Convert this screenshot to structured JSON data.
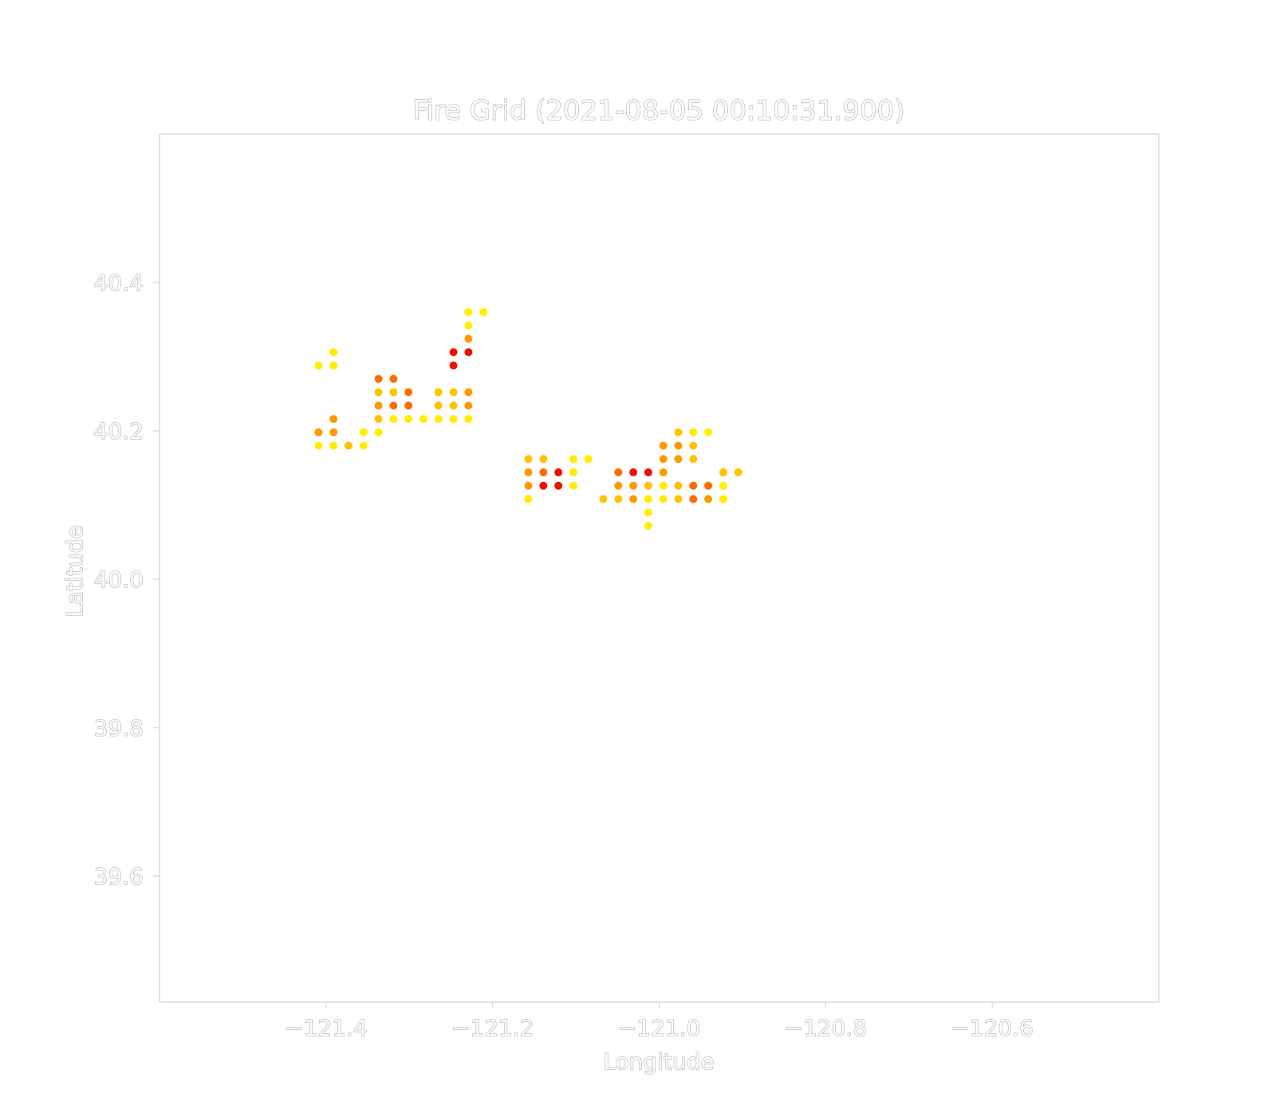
{
  "chart_data": {
    "type": "scatter",
    "title": "Fire Grid (2021-08-05 00:10:31.900)",
    "xlabel": "Longitude",
    "ylabel": "Latitude",
    "xlim": [
      -121.6,
      -120.4
    ],
    "ylim": [
      39.43,
      40.6
    ],
    "xticks": [
      -121.4,
      -121.2,
      -121.0,
      -120.8,
      -120.6
    ],
    "xtick_labels": [
      "−121.4",
      "−121.2",
      "−121.0",
      "−120.8",
      "−120.6"
    ],
    "yticks": [
      39.6,
      39.8,
      40.0,
      40.2,
      40.4
    ],
    "ytick_labels": [
      "39.6",
      "39.8",
      "40.0",
      "40.2",
      "40.4"
    ],
    "grid": false,
    "legend": "none",
    "color_scale": [
      "#ffee00",
      "#ffc200",
      "#ff9900",
      "#ff6a00",
      "#ee1100"
    ],
    "points": [
      [
        -121.409,
        40.288,
        0
      ],
      [
        -121.391,
        40.306,
        0
      ],
      [
        -121.391,
        40.288,
        0
      ],
      [
        -121.409,
        40.198,
        2
      ],
      [
        -121.391,
        40.216,
        2
      ],
      [
        -121.391,
        40.198,
        2
      ],
      [
        -121.409,
        40.18,
        0
      ],
      [
        -121.391,
        40.18,
        0
      ],
      [
        -121.373,
        40.18,
        1
      ],
      [
        -121.355,
        40.198,
        0
      ],
      [
        -121.355,
        40.18,
        0
      ],
      [
        -121.337,
        40.27,
        3
      ],
      [
        -121.337,
        40.252,
        1
      ],
      [
        -121.337,
        40.234,
        2
      ],
      [
        -121.337,
        40.216,
        1
      ],
      [
        -121.337,
        40.198,
        0
      ],
      [
        -121.319,
        40.27,
        3
      ],
      [
        -121.319,
        40.252,
        1
      ],
      [
        -121.319,
        40.234,
        3
      ],
      [
        -121.319,
        40.216,
        0
      ],
      [
        -121.301,
        40.252,
        3
      ],
      [
        -121.301,
        40.234,
        3
      ],
      [
        -121.301,
        40.216,
        0
      ],
      [
        -121.283,
        40.216,
        0
      ],
      [
        -121.265,
        40.252,
        1
      ],
      [
        -121.265,
        40.234,
        1
      ],
      [
        -121.265,
        40.216,
        0
      ],
      [
        -121.247,
        40.306,
        4
      ],
      [
        -121.247,
        40.288,
        4
      ],
      [
        -121.247,
        40.252,
        1
      ],
      [
        -121.247,
        40.234,
        1
      ],
      [
        -121.247,
        40.216,
        0
      ],
      [
        -121.229,
        40.36,
        0
      ],
      [
        -121.229,
        40.342,
        0
      ],
      [
        -121.229,
        40.324,
        2
      ],
      [
        -121.229,
        40.306,
        4
      ],
      [
        -121.229,
        40.252,
        2
      ],
      [
        -121.229,
        40.234,
        2
      ],
      [
        -121.229,
        40.216,
        0
      ],
      [
        -121.211,
        40.36,
        0
      ],
      [
        -121.157,
        40.162,
        1
      ],
      [
        -121.157,
        40.144,
        2
      ],
      [
        -121.157,
        40.126,
        2
      ],
      [
        -121.157,
        40.108,
        0
      ],
      [
        -121.139,
        40.162,
        1
      ],
      [
        -121.139,
        40.144,
        3
      ],
      [
        -121.139,
        40.126,
        4
      ],
      [
        -121.121,
        40.144,
        4
      ],
      [
        -121.121,
        40.126,
        4
      ],
      [
        -121.103,
        40.162,
        0
      ],
      [
        -121.103,
        40.144,
        0
      ],
      [
        -121.103,
        40.126,
        0
      ],
      [
        -121.085,
        40.162,
        0
      ],
      [
        -121.067,
        40.108,
        1
      ],
      [
        -121.049,
        40.144,
        3
      ],
      [
        -121.049,
        40.126,
        2
      ],
      [
        -121.049,
        40.108,
        1
      ],
      [
        -121.031,
        40.144,
        4
      ],
      [
        -121.031,
        40.126,
        2
      ],
      [
        -121.031,
        40.108,
        2
      ],
      [
        -121.013,
        40.144,
        4
      ],
      [
        -121.013,
        40.126,
        1
      ],
      [
        -121.013,
        40.108,
        0
      ],
      [
        -121.013,
        40.09,
        0
      ],
      [
        -121.013,
        40.072,
        0
      ],
      [
        -120.995,
        40.18,
        2
      ],
      [
        -120.995,
        40.162,
        2
      ],
      [
        -120.995,
        40.144,
        2
      ],
      [
        -120.995,
        40.126,
        0
      ],
      [
        -120.995,
        40.108,
        0
      ],
      [
        -120.977,
        40.198,
        1
      ],
      [
        -120.977,
        40.18,
        2
      ],
      [
        -120.977,
        40.162,
        2
      ],
      [
        -120.977,
        40.126,
        1
      ],
      [
        -120.977,
        40.108,
        1
      ],
      [
        -120.959,
        40.198,
        0
      ],
      [
        -120.959,
        40.18,
        1
      ],
      [
        -120.959,
        40.162,
        1
      ],
      [
        -120.959,
        40.126,
        3
      ],
      [
        -120.959,
        40.108,
        3
      ],
      [
        -120.941,
        40.198,
        0
      ],
      [
        -120.941,
        40.126,
        3
      ],
      [
        -120.941,
        40.108,
        2
      ],
      [
        -120.923,
        40.144,
        1
      ],
      [
        -120.923,
        40.126,
        0
      ],
      [
        -120.923,
        40.108,
        0
      ],
      [
        -120.905,
        40.144,
        1
      ]
    ]
  }
}
